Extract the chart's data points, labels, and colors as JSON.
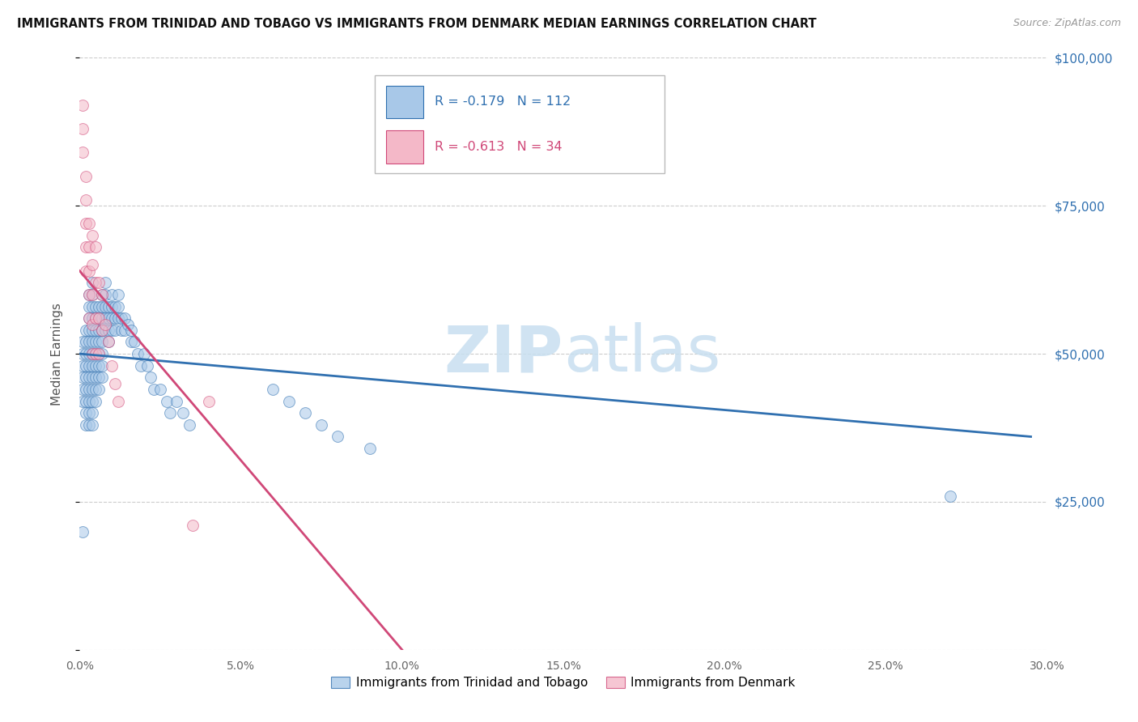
{
  "title": "IMMIGRANTS FROM TRINIDAD AND TOBAGO VS IMMIGRANTS FROM DENMARK MEDIAN EARNINGS CORRELATION CHART",
  "source": "Source: ZipAtlas.com",
  "ylabel": "Median Earnings",
  "xlim": [
    0,
    0.3
  ],
  "ylim": [
    0,
    100000
  ],
  "xtick_labels": [
    "0.0%",
    "5.0%",
    "10.0%",
    "15.0%",
    "20.0%",
    "25.0%",
    "30.0%"
  ],
  "xtick_values": [
    0,
    0.05,
    0.1,
    0.15,
    0.2,
    0.25,
    0.3
  ],
  "ytick_values": [
    0,
    25000,
    50000,
    75000,
    100000
  ],
  "ytick_labels": [
    "",
    "$25,000",
    "$50,000",
    "$75,000",
    "$100,000"
  ],
  "legend1_label": "Immigrants from Trinidad and Tobago",
  "legend2_label": "Immigrants from Denmark",
  "r1": -0.179,
  "n1": 112,
  "r2": -0.613,
  "n2": 34,
  "color_blue": "#a8c8e8",
  "color_pink": "#f4b8c8",
  "line_color_blue": "#3070b0",
  "line_color_pink": "#d04878",
  "watermark_color": "#c8dff0",
  "background_color": "#ffffff",
  "title_fontsize": 10.5,
  "scatter_alpha": 0.55,
  "scatter_size": 100,
  "blue_line_x0": 0.0,
  "blue_line_x1": 0.295,
  "blue_line_y0": 50000,
  "blue_line_y1": 36000,
  "pink_line_x0": 0.0,
  "pink_line_x1": 0.1,
  "pink_line_y0": 64000,
  "pink_line_y1": 0,
  "trinidad_x": [
    0.001,
    0.001,
    0.001,
    0.001,
    0.001,
    0.001,
    0.002,
    0.002,
    0.002,
    0.002,
    0.002,
    0.002,
    0.002,
    0.002,
    0.002,
    0.003,
    0.003,
    0.003,
    0.003,
    0.003,
    0.003,
    0.003,
    0.003,
    0.003,
    0.003,
    0.003,
    0.003,
    0.004,
    0.004,
    0.004,
    0.004,
    0.004,
    0.004,
    0.004,
    0.004,
    0.004,
    0.004,
    0.004,
    0.004,
    0.004,
    0.005,
    0.005,
    0.005,
    0.005,
    0.005,
    0.005,
    0.005,
    0.005,
    0.005,
    0.006,
    0.006,
    0.006,
    0.006,
    0.006,
    0.006,
    0.006,
    0.006,
    0.007,
    0.007,
    0.007,
    0.007,
    0.007,
    0.007,
    0.007,
    0.007,
    0.008,
    0.008,
    0.008,
    0.008,
    0.008,
    0.009,
    0.009,
    0.009,
    0.009,
    0.01,
    0.01,
    0.01,
    0.01,
    0.011,
    0.011,
    0.011,
    0.012,
    0.012,
    0.012,
    0.013,
    0.013,
    0.014,
    0.014,
    0.015,
    0.016,
    0.016,
    0.017,
    0.018,
    0.019,
    0.02,
    0.021,
    0.022,
    0.023,
    0.025,
    0.027,
    0.028,
    0.03,
    0.032,
    0.034,
    0.06,
    0.065,
    0.07,
    0.075,
    0.08,
    0.09,
    0.27,
    0.001
  ],
  "trinidad_y": [
    48000,
    50000,
    52000,
    46000,
    44000,
    42000,
    54000,
    52000,
    50000,
    48000,
    46000,
    44000,
    42000,
    40000,
    38000,
    60000,
    58000,
    56000,
    54000,
    52000,
    50000,
    48000,
    46000,
    44000,
    42000,
    40000,
    38000,
    62000,
    60000,
    58000,
    56000,
    54000,
    52000,
    50000,
    48000,
    46000,
    44000,
    42000,
    40000,
    38000,
    58000,
    56000,
    54000,
    52000,
    50000,
    48000,
    46000,
    44000,
    42000,
    58000,
    56000,
    54000,
    52000,
    50000,
    48000,
    46000,
    44000,
    60000,
    58000,
    56000,
    54000,
    52000,
    50000,
    48000,
    46000,
    62000,
    60000,
    58000,
    56000,
    54000,
    58000,
    56000,
    54000,
    52000,
    60000,
    58000,
    56000,
    54000,
    58000,
    56000,
    54000,
    60000,
    58000,
    56000,
    56000,
    54000,
    56000,
    54000,
    55000,
    54000,
    52000,
    52000,
    50000,
    48000,
    50000,
    48000,
    46000,
    44000,
    44000,
    42000,
    40000,
    42000,
    40000,
    38000,
    44000,
    42000,
    40000,
    38000,
    36000,
    34000,
    26000,
    20000
  ],
  "denmark_x": [
    0.001,
    0.001,
    0.001,
    0.002,
    0.002,
    0.002,
    0.002,
    0.002,
    0.003,
    0.003,
    0.003,
    0.003,
    0.003,
    0.004,
    0.004,
    0.004,
    0.004,
    0.004,
    0.005,
    0.005,
    0.005,
    0.005,
    0.006,
    0.006,
    0.006,
    0.007,
    0.007,
    0.008,
    0.009,
    0.01,
    0.011,
    0.012,
    0.035,
    0.04
  ],
  "denmark_y": [
    92000,
    88000,
    84000,
    80000,
    76000,
    72000,
    68000,
    64000,
    72000,
    68000,
    64000,
    60000,
    56000,
    70000,
    65000,
    60000,
    55000,
    50000,
    68000,
    62000,
    56000,
    50000,
    62000,
    56000,
    50000,
    60000,
    54000,
    55000,
    52000,
    48000,
    45000,
    42000,
    21000,
    42000
  ]
}
